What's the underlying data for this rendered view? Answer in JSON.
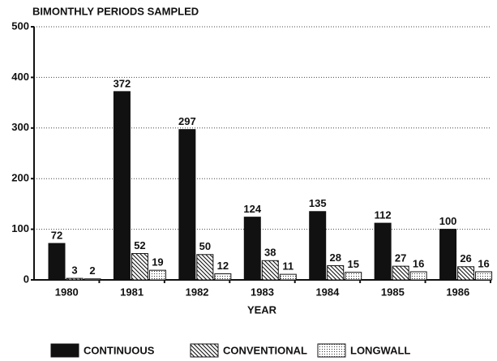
{
  "chart_data": {
    "type": "bar",
    "ylabel": "BIMONTHLY PERIODS SAMPLED",
    "xlabel": "YEAR",
    "categories": [
      "1980",
      "1981",
      "1982",
      "1983",
      "1984",
      "1985",
      "1986"
    ],
    "series": [
      {
        "name": "CONTINUOUS",
        "color": "#111111",
        "pattern": "solid",
        "values": [
          72,
          372,
          297,
          124,
          135,
          112,
          100
        ]
      },
      {
        "name": "CONVENTIONAL",
        "color": "#111111",
        "pattern": "hatch",
        "values": [
          3,
          52,
          50,
          38,
          28,
          27,
          26
        ]
      },
      {
        "name": "LONGWALL",
        "color": "#111111",
        "pattern": "dots",
        "values": [
          2,
          19,
          12,
          11,
          15,
          16,
          16
        ]
      }
    ],
    "ylim": [
      0,
      500
    ],
    "yticks": [
      0,
      100,
      200,
      300,
      400,
      500
    ],
    "grid": true,
    "legend": "bottom"
  }
}
